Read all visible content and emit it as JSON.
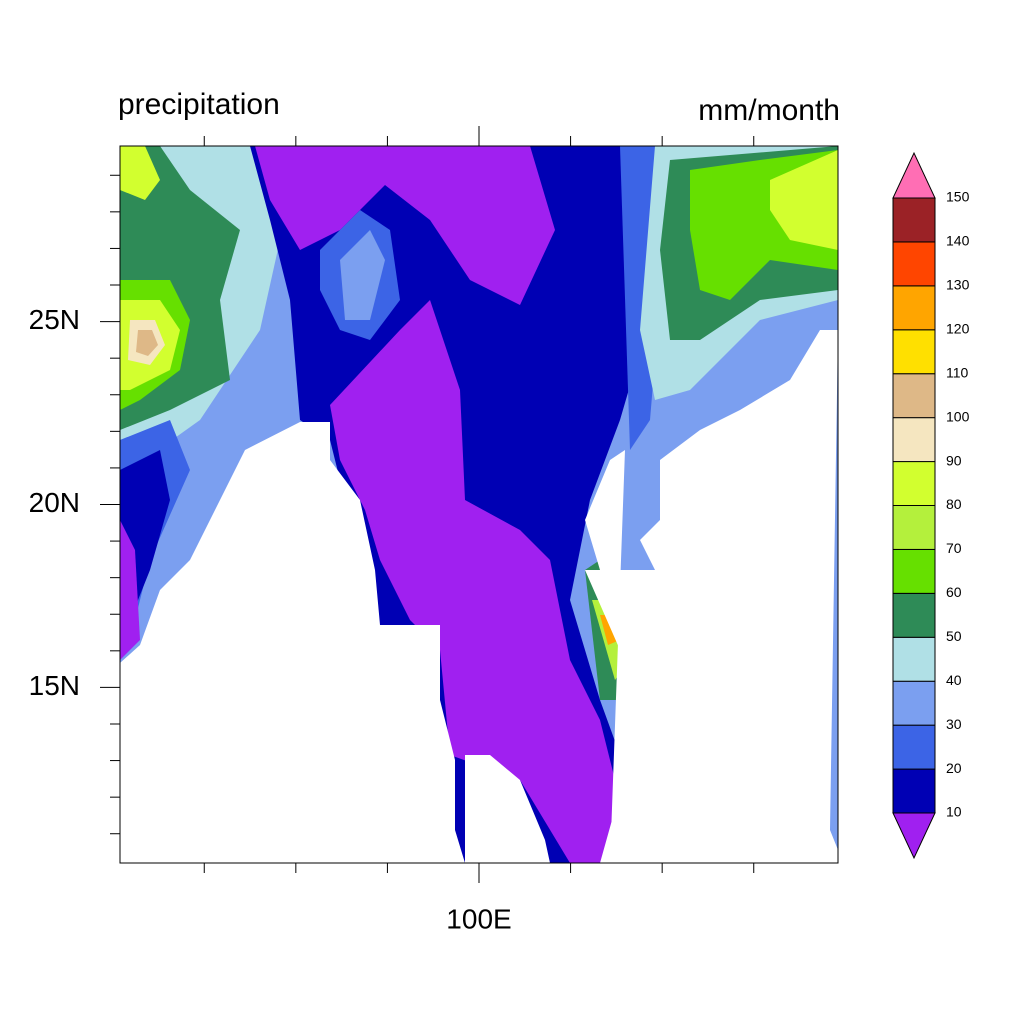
{
  "chart_data": {
    "type": "contour-map",
    "title": "precipitation",
    "units": "mm/month",
    "xlim": [
      90.2,
      109.8
    ],
    "ylim": [
      10.2,
      29.8
    ],
    "xticks": [
      {
        "value": 100,
        "label": "100E"
      }
    ],
    "yticks": [
      {
        "value": 15,
        "label": "15N"
      },
      {
        "value": 20,
        "label": "20N"
      },
      {
        "value": 25,
        "label": "25N"
      }
    ],
    "x_minor_ticks": [
      92.5,
      95,
      97.5,
      102.5,
      105,
      107.5
    ],
    "y_minor_ticks": [
      11,
      12,
      13,
      14,
      16,
      17,
      18,
      19,
      21,
      22,
      23,
      24,
      26,
      27,
      28,
      29
    ],
    "colorbar": {
      "levels": [
        10,
        20,
        30,
        40,
        50,
        60,
        70,
        80,
        90,
        100,
        110,
        120,
        130,
        140,
        150
      ],
      "colors": [
        "#a020f0",
        "#0000b4",
        "#3c64e6",
        "#7b9ff0",
        "#b0e0e6",
        "#2e8b57",
        "#66e000",
        "#b4f03c",
        "#d2ff2f",
        "#f5e6c0",
        "#deb887",
        "#ffe000",
        "#ffa500",
        "#ff4500",
        "#9b2226",
        "#ff6eb4"
      ]
    }
  }
}
